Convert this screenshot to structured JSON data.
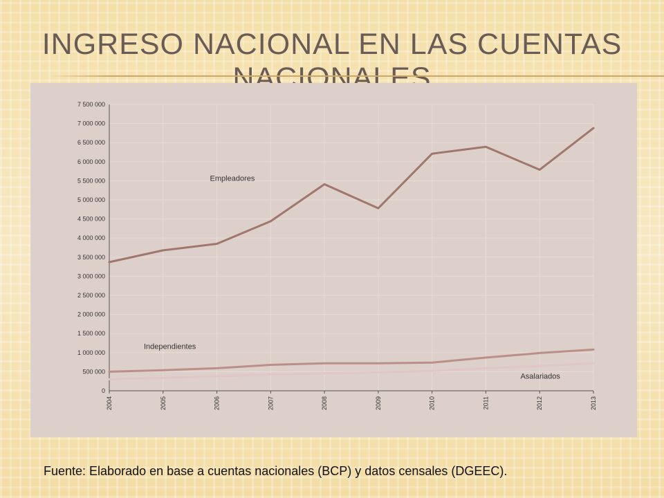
{
  "slide": {
    "title": "Ingreso Nacional en las cuentas nacionales",
    "source": "Fuente: Elaborado en base a cuentas nacionales (BCP) y datos censales (DGEEC)."
  },
  "chart_data": {
    "type": "line",
    "categories": [
      "2004",
      "2005",
      "2006",
      "2007",
      "2008",
      "2009",
      "2010",
      "2011",
      "2012",
      "2013"
    ],
    "series": [
      {
        "name": "Empleadores",
        "color": "#a0766d",
        "values": [
          3370000,
          3680000,
          3850000,
          4440000,
          5410000,
          4780000,
          6210000,
          6390000,
          5790000,
          6880000
        ]
      },
      {
        "name": "Independientes",
        "color": "#bb8f88",
        "values": [
          500000,
          540000,
          590000,
          680000,
          720000,
          720000,
          740000,
          870000,
          990000,
          1080000
        ]
      },
      {
        "name": "Asalariados",
        "color": "#e0c6c6",
        "values": [
          300000,
          340000,
          380000,
          430000,
          460000,
          480000,
          520000,
          590000,
          650000,
          720000
        ]
      }
    ],
    "y_ticks": [
      "0",
      "500 000",
      "1 000 000",
      "1 500 000",
      "2 000 000",
      "2 500 000",
      "3 000 000",
      "3 500 000",
      "4 000 000",
      "4 500 000",
      "5 000 000",
      "5 500 000",
      "6 000 000",
      "6 500 000",
      "7 000 000",
      "7 500 000"
    ],
    "ylim": [
      0,
      7500000
    ],
    "grid": true,
    "legend": "inline labels"
  }
}
